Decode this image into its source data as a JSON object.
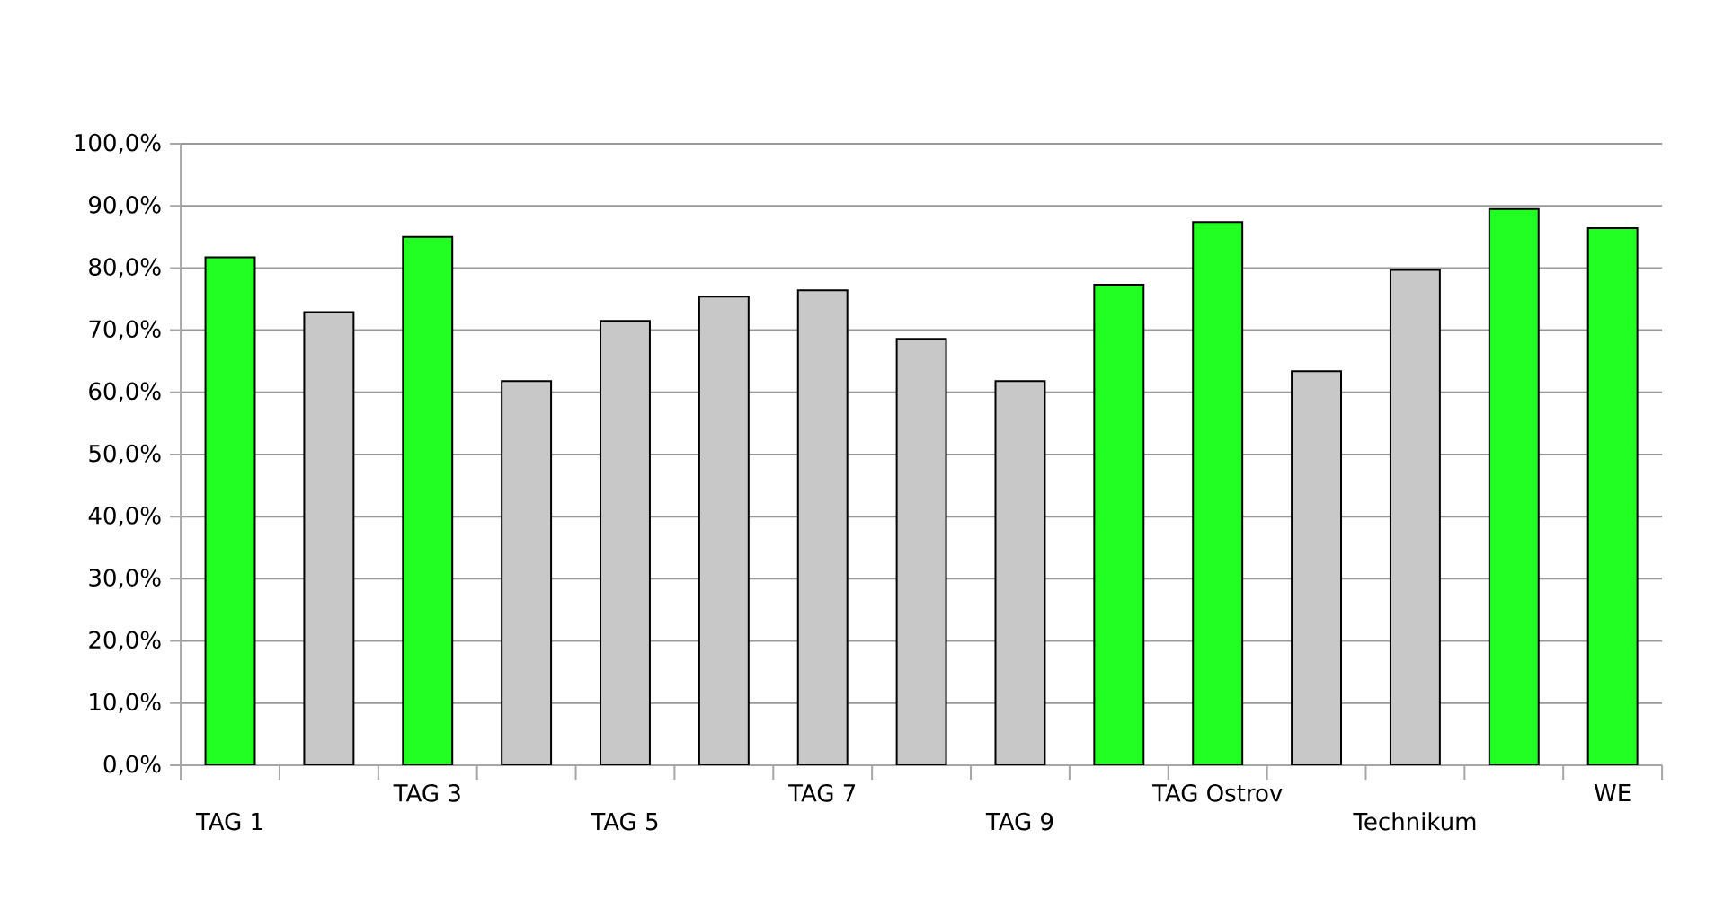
{
  "chart_data": {
    "type": "bar",
    "categories": [
      "TAG 1",
      null,
      "TAG 3",
      null,
      "TAG 5",
      null,
      "TAG 7",
      null,
      "TAG 9",
      null,
      "TAG Ostrov",
      null,
      "Technikum",
      null,
      "WE"
    ],
    "values": [
      81.7,
      72.9,
      85.0,
      61.8,
      71.5,
      75.4,
      76.4,
      68.6,
      61.8,
      77.3,
      87.4,
      63.4,
      79.7,
      89.5,
      86.4
    ],
    "colors": [
      "#22ff22",
      "#c8c8c8",
      "#22ff22",
      "#c8c8c8",
      "#c8c8c8",
      "#c8c8c8",
      "#c8c8c8",
      "#c8c8c8",
      "#c8c8c8",
      "#22ff22",
      "#22ff22",
      "#c8c8c8",
      "#c8c8c8",
      "#22ff22",
      "#22ff22"
    ],
    "ylim": [
      0,
      100
    ],
    "yticks": [
      {
        "value": 0,
        "label": "0,0%"
      },
      {
        "value": 10,
        "label": "10,0%"
      },
      {
        "value": 20,
        "label": "20,0%"
      },
      {
        "value": 30,
        "label": "30,0%"
      },
      {
        "value": 40,
        "label": "40,0%"
      },
      {
        "value": 50,
        "label": "50,0%"
      },
      {
        "value": 60,
        "label": "60,0%"
      },
      {
        "value": 70,
        "label": "70,0%"
      },
      {
        "value": 80,
        "label": "80,0%"
      },
      {
        "value": 90,
        "label": "90,0%"
      },
      {
        "value": 100,
        "label": "100,0%"
      }
    ],
    "grid": "y"
  }
}
